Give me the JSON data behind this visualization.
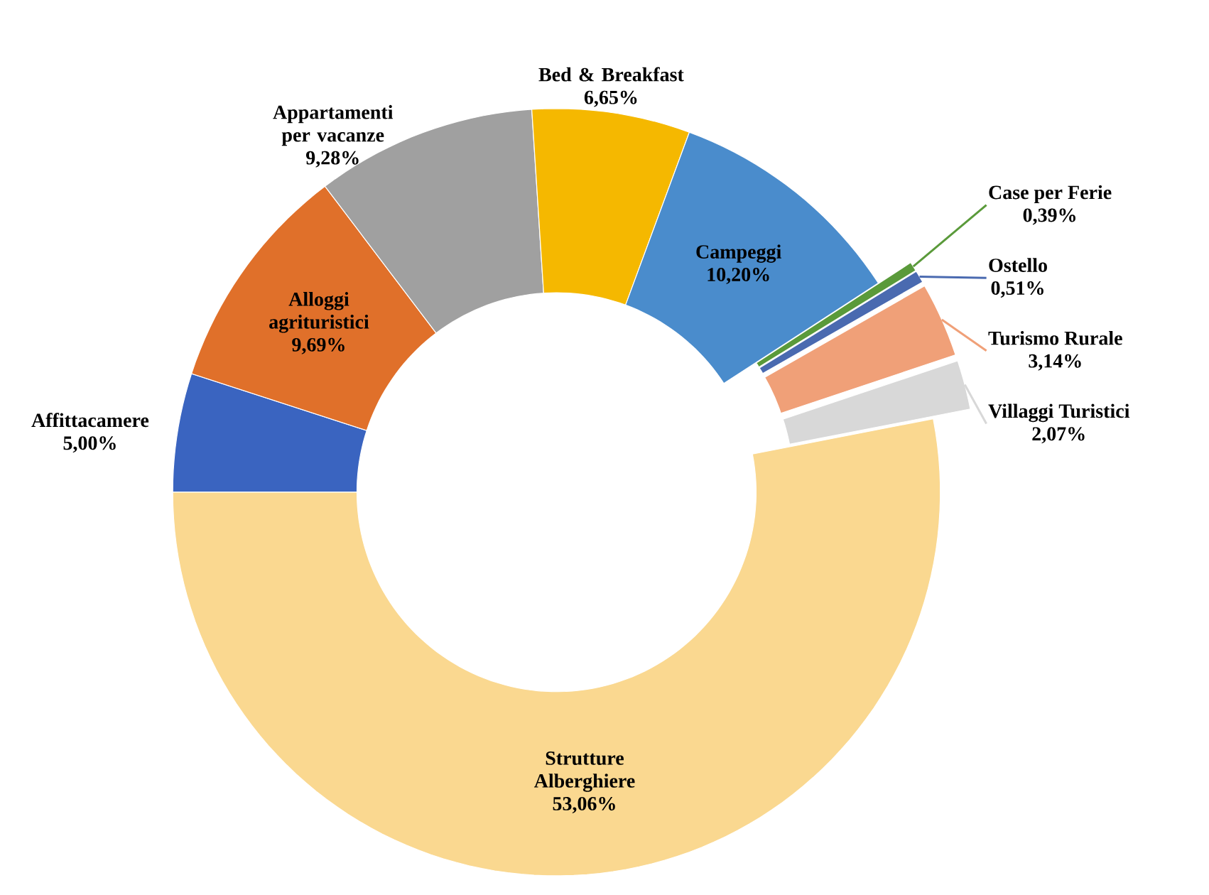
{
  "chart_data": {
    "type": "donut",
    "categories": [
      "Affittacamere",
      "Alloggi agrituristici",
      "Appartamenti per vacanze",
      "Bed & Breakfast",
      "Campeggi",
      "Case per Ferie",
      "Ostello",
      "Turismo Rurale",
      "Villaggi Turistici",
      "Strutture Alberghiere"
    ],
    "values": [
      5.0,
      9.69,
      9.28,
      6.65,
      10.2,
      0.39,
      0.51,
      3.14,
      2.07,
      53.06
    ],
    "value_labels": [
      "5,00%",
      "9,69%",
      "9,28%",
      "6,65%",
      "10,20%",
      "0,39%",
      "0,51%",
      "3,14%",
      "2,07%",
      "53,06%"
    ],
    "colors": [
      "#3a64c0",
      "#e0702a",
      "#a0a0a0",
      "#f5b800",
      "#4a8ccc",
      "#5a9a3a",
      "#4a6ab0",
      "#f0a078",
      "#d8d8d8",
      "#fad890"
    ]
  }
}
